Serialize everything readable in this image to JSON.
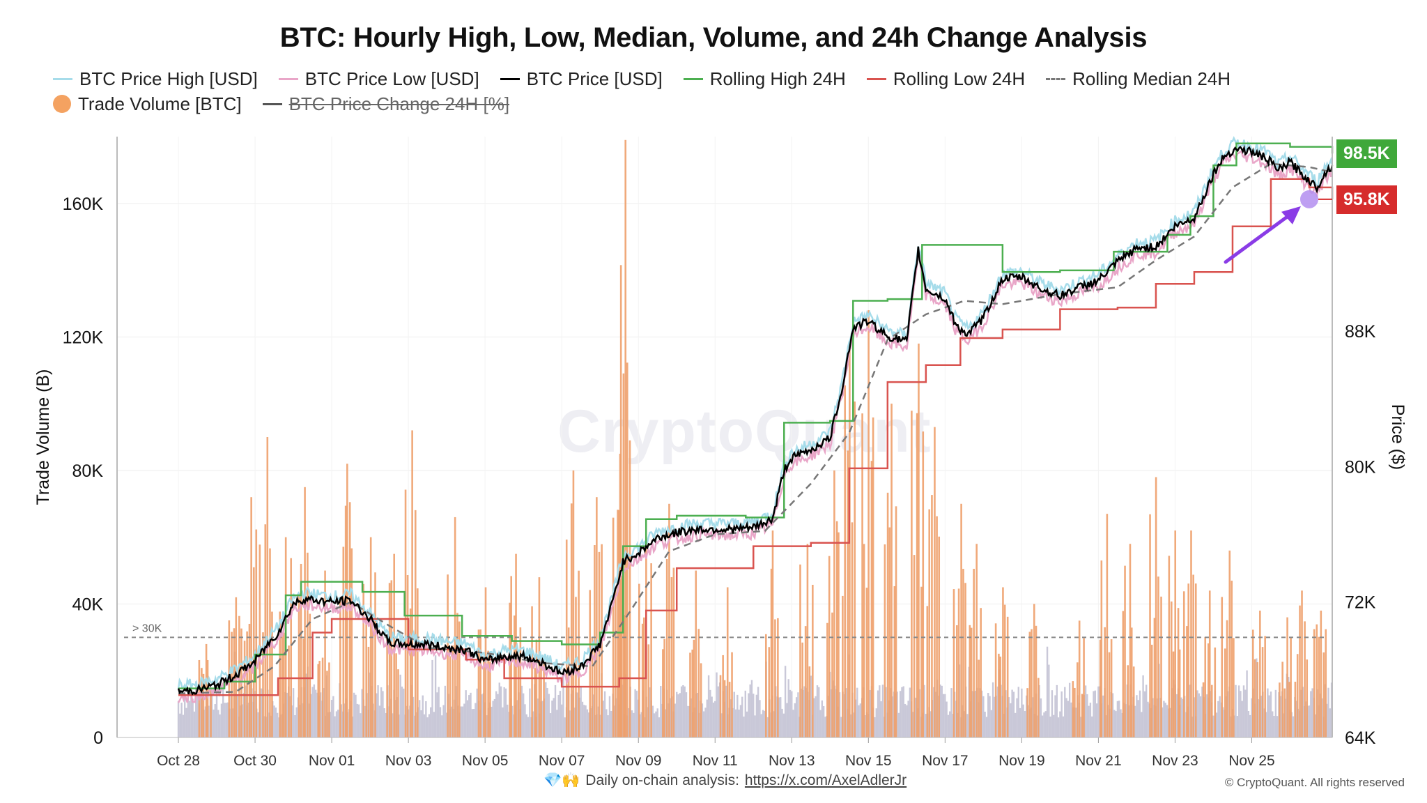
{
  "chart_data": {
    "type": "line",
    "title": "BTC: Hourly High, Low, Median, Volume, and 24h Change Analysis",
    "legend": [
      {
        "name": "BTC Price High [USD]",
        "color": "#a6dcea",
        "style": "line"
      },
      {
        "name": "BTC Price Low [USD]",
        "color": "#e9a6c8",
        "style": "line"
      },
      {
        "name": "BTC Price [USD]",
        "color": "#000000",
        "style": "line"
      },
      {
        "name": "Rolling High 24H",
        "color": "#4caf50",
        "style": "line"
      },
      {
        "name": "Rolling Low 24H",
        "color": "#d9534f",
        "style": "line"
      },
      {
        "name": "Rolling Median 24H",
        "color": "#777777",
        "style": "dashed"
      },
      {
        "name": "Trade Volume [BTC]",
        "color": "#f4a261",
        "style": "dot"
      },
      {
        "name": "BTC Price Change 24H [%]",
        "color": "#555555",
        "style": "line",
        "disabled": true
      }
    ],
    "legend_placement": "top",
    "y_left": {
      "label": "Trade Volume (B)",
      "range": [
        0,
        180000
      ],
      "ticks": [
        0,
        40000,
        80000,
        120000,
        160000
      ],
      "tick_labels": [
        "0",
        "40K",
        "80K",
        "120K",
        "160K"
      ]
    },
    "y_right": {
      "label": "Price ($)",
      "range": [
        64000,
        99500
      ],
      "ticks": [
        64000,
        72000,
        80000,
        88000
      ],
      "tick_labels": [
        "64K",
        "72K",
        "80K",
        "88K"
      ]
    },
    "x_axis": {
      "ticks": [
        "Oct 28",
        "Oct 30",
        "Nov 01",
        "Nov 03",
        "Nov 05",
        "Nov 07",
        "Nov 09",
        "Nov 11",
        "Nov 13",
        "Nov 15",
        "Nov 17",
        "Nov 19",
        "Nov 21",
        "Nov 23",
        "Nov 25"
      ],
      "range_days": [
        -1.6,
        28.6
      ]
    },
    "threshold": {
      "value": 30000,
      "label": "> 30K",
      "color": "#888888"
    },
    "grid": true,
    "price_series": [
      {
        "day": 0.0,
        "price": 66700
      },
      {
        "day": 0.5,
        "price": 66800
      },
      {
        "day": 1.0,
        "price": 67100
      },
      {
        "day": 1.5,
        "price": 67700
      },
      {
        "day": 2.0,
        "price": 68500
      },
      {
        "day": 2.3,
        "price": 69400
      },
      {
        "day": 2.6,
        "price": 70200
      },
      {
        "day": 3.0,
        "price": 71900
      },
      {
        "day": 3.3,
        "price": 72200
      },
      {
        "day": 3.6,
        "price": 72100
      },
      {
        "day": 4.0,
        "price": 72000
      },
      {
        "day": 4.5,
        "price": 72100
      },
      {
        "day": 5.0,
        "price": 71000
      },
      {
        "day": 5.5,
        "price": 69600
      },
      {
        "day": 6.0,
        "price": 69500
      },
      {
        "day": 6.5,
        "price": 69500
      },
      {
        "day": 7.0,
        "price": 69300
      },
      {
        "day": 7.5,
        "price": 69200
      },
      {
        "day": 8.0,
        "price": 68500
      },
      {
        "day": 8.5,
        "price": 68800
      },
      {
        "day": 9.0,
        "price": 68800
      },
      {
        "day": 9.5,
        "price": 68400
      },
      {
        "day": 10.0,
        "price": 67800
      },
      {
        "day": 10.5,
        "price": 68200
      },
      {
        "day": 11.0,
        "price": 69500
      },
      {
        "day": 11.3,
        "price": 71800
      },
      {
        "day": 11.6,
        "price": 74400
      },
      {
        "day": 12.0,
        "price": 74900
      },
      {
        "day": 12.5,
        "price": 75800
      },
      {
        "day": 13.0,
        "price": 76100
      },
      {
        "day": 13.5,
        "price": 76300
      },
      {
        "day": 14.0,
        "price": 76300
      },
      {
        "day": 14.5,
        "price": 76300
      },
      {
        "day": 15.0,
        "price": 76400
      },
      {
        "day": 15.5,
        "price": 76900
      },
      {
        "day": 15.8,
        "price": 79800
      },
      {
        "day": 16.0,
        "price": 80500
      },
      {
        "day": 16.5,
        "price": 81000
      },
      {
        "day": 17.0,
        "price": 81700
      },
      {
        "day": 17.3,
        "price": 84500
      },
      {
        "day": 17.6,
        "price": 88200
      },
      {
        "day": 18.0,
        "price": 88600
      },
      {
        "day": 18.5,
        "price": 87700
      },
      {
        "day": 19.0,
        "price": 87400
      },
      {
        "day": 19.3,
        "price": 92800
      },
      {
        "day": 19.5,
        "price": 90500
      },
      {
        "day": 20.0,
        "price": 89900
      },
      {
        "day": 20.3,
        "price": 88300
      },
      {
        "day": 20.6,
        "price": 87800
      },
      {
        "day": 21.0,
        "price": 88800
      },
      {
        "day": 21.5,
        "price": 91100
      },
      {
        "day": 22.0,
        "price": 91200
      },
      {
        "day": 22.5,
        "price": 90500
      },
      {
        "day": 23.0,
        "price": 90100
      },
      {
        "day": 23.5,
        "price": 90600
      },
      {
        "day": 24.0,
        "price": 91000
      },
      {
        "day": 24.5,
        "price": 92100
      },
      {
        "day": 25.0,
        "price": 92900
      },
      {
        "day": 25.5,
        "price": 93000
      },
      {
        "day": 26.0,
        "price": 94200
      },
      {
        "day": 26.5,
        "price": 94700
      },
      {
        "day": 27.0,
        "price": 97300
      },
      {
        "day": 27.3,
        "price": 98400
      },
      {
        "day": 27.6,
        "price": 98800
      },
      {
        "day": 28.0,
        "price": 98600
      },
      {
        "day": 28.4,
        "price": 98200
      },
      {
        "day": 28.7,
        "price": 97500
      },
      {
        "day": 29.0,
        "price": 98000
      },
      {
        "day": 29.3,
        "price": 97300
      },
      {
        "day": 29.5,
        "price": 96900
      },
      {
        "day": 29.7,
        "price": 96500
      },
      {
        "day": 29.9,
        "price": 97300
      },
      {
        "day": 30.1,
        "price": 97800
      }
    ],
    "rolling_high_24h": [
      {
        "day": 0.0,
        "price": 66900
      },
      {
        "day": 1.2,
        "price": 67300
      },
      {
        "day": 2.0,
        "price": 68900
      },
      {
        "day": 2.8,
        "price": 72400
      },
      {
        "day": 3.2,
        "price": 73200
      },
      {
        "day": 4.8,
        "price": 72600
      },
      {
        "day": 5.9,
        "price": 71200
      },
      {
        "day": 7.4,
        "price": 70000
      },
      {
        "day": 8.7,
        "price": 69700
      },
      {
        "day": 10.0,
        "price": 69500
      },
      {
        "day": 11.0,
        "price": 70200
      },
      {
        "day": 11.6,
        "price": 75300
      },
      {
        "day": 12.2,
        "price": 76900
      },
      {
        "day": 13.0,
        "price": 77100
      },
      {
        "day": 14.8,
        "price": 77000
      },
      {
        "day": 15.8,
        "price": 82600
      },
      {
        "day": 17.0,
        "price": 82700
      },
      {
        "day": 17.6,
        "price": 89800
      },
      {
        "day": 18.5,
        "price": 89900
      },
      {
        "day": 19.4,
        "price": 93100
      },
      {
        "day": 20.5,
        "price": 93100
      },
      {
        "day": 21.5,
        "price": 91500
      },
      {
        "day": 23.0,
        "price": 91600
      },
      {
        "day": 24.4,
        "price": 92700
      },
      {
        "day": 25.8,
        "price": 93700
      },
      {
        "day": 26.4,
        "price": 94800
      },
      {
        "day": 27.0,
        "price": 97800
      },
      {
        "day": 27.6,
        "price": 99100
      },
      {
        "day": 29.0,
        "price": 98900
      },
      {
        "day": 30.1,
        "price": 98500
      }
    ],
    "rolling_low_24h": [
      {
        "day": 0.0,
        "price": 66500
      },
      {
        "day": 1.5,
        "price": 66500
      },
      {
        "day": 2.6,
        "price": 67500
      },
      {
        "day": 3.5,
        "price": 70200
      },
      {
        "day": 4.0,
        "price": 71000
      },
      {
        "day": 5.5,
        "price": 71000
      },
      {
        "day": 6.0,
        "price": 69200
      },
      {
        "day": 7.5,
        "price": 68600
      },
      {
        "day": 8.5,
        "price": 67500
      },
      {
        "day": 10.0,
        "price": 67000
      },
      {
        "day": 11.5,
        "price": 67500
      },
      {
        "day": 12.2,
        "price": 71500
      },
      {
        "day": 13.0,
        "price": 74000
      },
      {
        "day": 15.0,
        "price": 75300
      },
      {
        "day": 16.5,
        "price": 75500
      },
      {
        "day": 17.5,
        "price": 79900
      },
      {
        "day": 18.5,
        "price": 85000
      },
      {
        "day": 19.5,
        "price": 86000
      },
      {
        "day": 20.4,
        "price": 87600
      },
      {
        "day": 21.5,
        "price": 88100
      },
      {
        "day": 23.0,
        "price": 89300
      },
      {
        "day": 24.5,
        "price": 89400
      },
      {
        "day": 25.5,
        "price": 90800
      },
      {
        "day": 26.5,
        "price": 91500
      },
      {
        "day": 27.5,
        "price": 94200
      },
      {
        "day": 28.5,
        "price": 97000
      },
      {
        "day": 29.5,
        "price": 96500
      },
      {
        "day": 30.1,
        "price": 95800
      }
    ],
    "rolling_median_24h": [
      {
        "day": 0.0,
        "price": 66600
      },
      {
        "day": 1.5,
        "price": 66700
      },
      {
        "day": 2.5,
        "price": 68200
      },
      {
        "day": 3.5,
        "price": 71000
      },
      {
        "day": 4.5,
        "price": 72000
      },
      {
        "day": 5.5,
        "price": 70600
      },
      {
        "day": 6.5,
        "price": 69300
      },
      {
        "day": 8.0,
        "price": 69000
      },
      {
        "day": 9.5,
        "price": 68400
      },
      {
        "day": 10.8,
        "price": 68200
      },
      {
        "day": 11.8,
        "price": 71500
      },
      {
        "day": 12.8,
        "price": 75000
      },
      {
        "day": 14.0,
        "price": 76000
      },
      {
        "day": 15.3,
        "price": 76200
      },
      {
        "day": 16.5,
        "price": 79000
      },
      {
        "day": 17.5,
        "price": 82000
      },
      {
        "day": 18.5,
        "price": 87500
      },
      {
        "day": 19.5,
        "price": 89000
      },
      {
        "day": 20.5,
        "price": 89800
      },
      {
        "day": 21.5,
        "price": 89600
      },
      {
        "day": 23.0,
        "price": 90200
      },
      {
        "day": 24.5,
        "price": 90600
      },
      {
        "day": 25.5,
        "price": 92200
      },
      {
        "day": 26.5,
        "price": 93600
      },
      {
        "day": 27.5,
        "price": 96500
      },
      {
        "day": 28.5,
        "price": 97900
      },
      {
        "day": 29.5,
        "price": 97700
      },
      {
        "day": 30.1,
        "price": 97400
      }
    ],
    "volume_spikes": [
      {
        "day": 0.7,
        "volume": 28000
      },
      {
        "day": 1.5,
        "volume": 42000
      },
      {
        "day": 1.9,
        "volume": 72000
      },
      {
        "day": 2.3,
        "volume": 90000
      },
      {
        "day": 2.8,
        "volume": 60000
      },
      {
        "day": 3.3,
        "volume": 75000
      },
      {
        "day": 3.8,
        "volume": 50000
      },
      {
        "day": 4.4,
        "volume": 82000
      },
      {
        "day": 5.0,
        "volume": 60000
      },
      {
        "day": 5.6,
        "volume": 55000
      },
      {
        "day": 6.1,
        "volume": 92000
      },
      {
        "day": 7.2,
        "volume": 66000
      },
      {
        "day": 8.0,
        "volume": 45000
      },
      {
        "day": 8.8,
        "volume": 55000
      },
      {
        "day": 9.4,
        "volume": 48000
      },
      {
        "day": 10.3,
        "volume": 80000
      },
      {
        "day": 10.9,
        "volume": 72000
      },
      {
        "day": 11.5,
        "volume": 85000
      },
      {
        "day": 11.65,
        "volume": 179000
      },
      {
        "day": 12.2,
        "volume": 60000
      },
      {
        "day": 12.8,
        "volume": 70000
      },
      {
        "day": 13.5,
        "volume": 50000
      },
      {
        "day": 14.3,
        "volume": 45000
      },
      {
        "day": 15.5,
        "volume": 62000
      },
      {
        "day": 16.4,
        "volume": 58000
      },
      {
        "day": 17.1,
        "volume": 80000
      },
      {
        "day": 17.5,
        "volume": 118000
      },
      {
        "day": 18.0,
        "volume": 128000
      },
      {
        "day": 18.6,
        "volume": 100000
      },
      {
        "day": 19.3,
        "volume": 118000
      },
      {
        "day": 19.7,
        "volume": 93000
      },
      {
        "day": 20.4,
        "volume": 70000
      },
      {
        "day": 20.8,
        "volume": 58000
      },
      {
        "day": 21.5,
        "volume": 45000
      },
      {
        "day": 22.3,
        "volume": 40000
      },
      {
        "day": 23.5,
        "volume": 35000
      },
      {
        "day": 24.2,
        "volume": 67000
      },
      {
        "day": 24.8,
        "volume": 58000
      },
      {
        "day": 25.5,
        "volume": 78000
      },
      {
        "day": 26.0,
        "volume": 62000
      },
      {
        "day": 26.4,
        "volume": 62000
      },
      {
        "day": 26.9,
        "volume": 44000
      },
      {
        "day": 27.4,
        "volume": 56000
      },
      {
        "day": 28.2,
        "volume": 38000
      },
      {
        "day": 28.9,
        "volume": 36000
      },
      {
        "day": 29.3,
        "volume": 44000
      },
      {
        "day": 29.8,
        "volume": 38000
      }
    ],
    "current_values": {
      "rolling_high": {
        "label": "98.5K",
        "price": 98500,
        "color": "#3fa83a"
      },
      "rolling_low": {
        "label": "95.8K",
        "price": 95800,
        "color": "#d62c2c"
      }
    },
    "annotation": {
      "type": "arrow",
      "color": "#8a3ce6",
      "target_day": 29.5,
      "target_price": 95800
    }
  },
  "watermark": "CryptoQuant",
  "footer": {
    "icons": "💎🙌",
    "text": "Daily on-chain analysis:",
    "link": "https://x.com/AxelAdlerJr",
    "copyright": "© CryptoQuant. All rights reserved"
  }
}
